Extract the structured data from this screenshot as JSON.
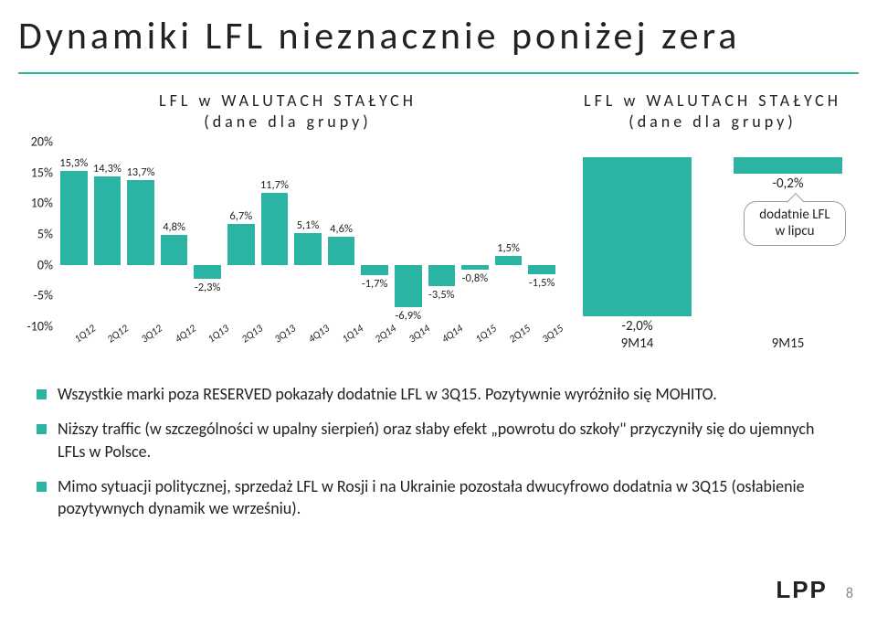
{
  "title": "Dynamiki LFL nieznacznie poniżej zera",
  "colors": {
    "accent": "#2bb3a3",
    "text": "#222222",
    "bg": "#ffffff",
    "callout_border": "#9c9c9c"
  },
  "left_chart": {
    "type": "bar",
    "title_line1": "LFL w WALUTACH STAŁYCH",
    "title_line2": "(dane dla grupy)",
    "bar_color": "#2bb3a3",
    "ylim_min": -10,
    "ylim_max": 20,
    "ytick_step": 5,
    "yticks": [
      "20%",
      "15%",
      "10%",
      "5%",
      "0%",
      "-5%",
      "-10%"
    ],
    "label_fontsize": 14,
    "value_fontsize": 12.5,
    "xlabel_fontsize": 11.5,
    "categories": [
      "1Q12",
      "2Q12",
      "3Q12",
      "4Q12",
      "1Q13",
      "2Q13",
      "3Q13",
      "4Q13",
      "1Q14",
      "2Q14",
      "3Q14",
      "4Q14",
      "1Q15",
      "2Q15",
      "3Q15"
    ],
    "values": [
      15.3,
      14.3,
      13.7,
      4.8,
      -2.3,
      6.7,
      11.7,
      5.1,
      4.6,
      -1.7,
      -6.9,
      -3.5,
      -0.8,
      1.5,
      -1.5
    ],
    "value_labels": [
      "15,3%",
      "14,3%",
      "13,7%",
      "4,8%",
      "-2,3%",
      "6,7%",
      "11,7%",
      "5,1%",
      "4,6%",
      "-1,7%",
      "-6,9%",
      "-3,5%",
      "-0,8%",
      "1,5%",
      "-1,5%"
    ]
  },
  "right_chart": {
    "type": "bar",
    "title_line1": "LFL w WALUTACH STAŁYCH",
    "title_line2": "(dane dla grupy)",
    "bar_color": "#2bb3a3",
    "ylim_min": -2.2,
    "ylim_max": 0.2,
    "categories": [
      "9M14",
      "9M15"
    ],
    "values": [
      -2.0,
      -0.2
    ],
    "value_labels": [
      "-2,0%",
      "-0,2%"
    ],
    "value_fontsize": 15,
    "xlabel_fontsize": 15,
    "callout_text": "dodatnie LFL w lipcu"
  },
  "bullets": [
    "Wszystkie marki poza RESERVED pokazały dodatnie LFL w 3Q15. Pozytywnie wyróżniło się MOHITO.",
    "Niższy traffic (w szczególności w upalny sierpień) oraz słaby efekt „powrotu do szkoły\" przyczyniły się do ujemnych LFLs w Polsce.",
    "Mimo sytuacji politycznej, sprzedaż LFL w Rosji i na Ukrainie pozostała dwucyfrowo dodatnia w 3Q15 (osłabienie pozytywnych dynamik we wrześniu)."
  ],
  "footer": {
    "logo": "LPP",
    "page": "8"
  }
}
